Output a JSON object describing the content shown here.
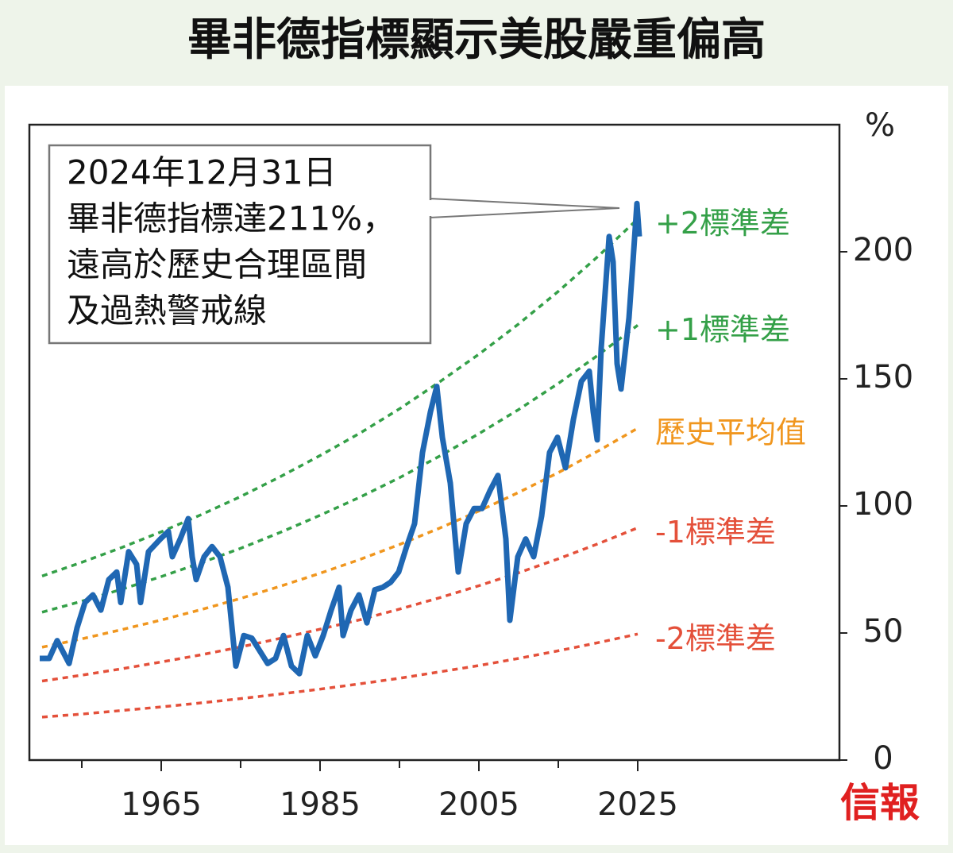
{
  "title": "畢非德指標顯示美股嚴重偏高",
  "source": "信報",
  "chart_data": {
    "type": "line",
    "y_unit": "%",
    "annotation": [
      "2024年12月31日",
      "畢非德指標達211%，",
      "遠高於歷史合理區間",
      "及過熱警戒線"
    ],
    "xlim": [
      1948.4,
      2050.4
    ],
    "xticks": [
      1965,
      1985,
      2005,
      2025
    ],
    "xminor_ticks": [
      1955,
      1975,
      1995,
      2015
    ],
    "ylim": [
      0,
      250
    ],
    "yticks": [
      0,
      50,
      100,
      150,
      200
    ],
    "series": [
      {
        "name": "+2標準差",
        "color": "#34a048",
        "dashed": true,
        "x": [
          1950,
          1955,
          1960,
          1965,
          1970,
          1975,
          1980,
          1985,
          1990,
          1995,
          2000,
          2005,
          2010,
          2015,
          2020,
          2025
        ],
        "values": [
          72.4,
          77.8,
          83.6,
          89.8,
          96.5,
          103.7,
          111.5,
          119.8,
          128.6,
          138.2,
          148.7,
          159.7,
          171.6,
          184.4,
          198.2,
          212.9
        ]
      },
      {
        "name": "+1標準差",
        "color": "#34a048",
        "dashed": true,
        "x": [
          1950,
          1955,
          1960,
          1965,
          1970,
          1975,
          1980,
          1985,
          1990,
          1995,
          2000,
          2005,
          2010,
          2015,
          2020,
          2025
        ],
        "values": [
          58.2,
          62.5,
          67.2,
          72.2,
          77.6,
          83.3,
          89.6,
          96.3,
          103.4,
          111.1,
          119.5,
          128.4,
          137.9,
          148.2,
          159.3,
          171.1
        ]
      },
      {
        "name": "歷史平均值",
        "color": "#f0961e",
        "dashed": true,
        "x": [
          1950,
          1955,
          1960,
          1965,
          1970,
          1975,
          1980,
          1985,
          1990,
          1995,
          2000,
          2005,
          2010,
          2015,
          2020,
          2025
        ],
        "values": [
          44.4,
          47.7,
          51.3,
          55.1,
          59.2,
          63.6,
          68.4,
          73.5,
          78.9,
          84.8,
          91.2,
          98.0,
          105.3,
          113.1,
          121.6,
          130.6
        ]
      },
      {
        "name": "-1標準差",
        "color": "#e4503a",
        "dashed": true,
        "x": [
          1950,
          1955,
          1960,
          1965,
          1970,
          1975,
          1980,
          1985,
          1990,
          1995,
          2000,
          2005,
          2010,
          2015,
          2020,
          2025
        ],
        "values": [
          31.1,
          33.4,
          35.9,
          38.6,
          41.4,
          44.5,
          47.9,
          51.5,
          55.2,
          59.4,
          63.8,
          68.6,
          73.7,
          79.2,
          85.1,
          91.4
        ]
      },
      {
        "name": "-2標準差",
        "color": "#e4503a",
        "dashed": true,
        "x": [
          1950,
          1955,
          1960,
          1965,
          1970,
          1975,
          1980,
          1985,
          1990,
          1995,
          2000,
          2005,
          2010,
          2015,
          2020,
          2025
        ],
        "values": [
          16.9,
          18.1,
          19.5,
          20.9,
          22.5,
          24.2,
          26.0,
          27.9,
          30.0,
          32.2,
          34.7,
          37.2,
          40.0,
          43.0,
          46.2,
          49.6
        ]
      },
      {
        "color": "#1f67b3",
        "dashed": false,
        "x": [
          1949.7,
          1950.9,
          1951.9,
          1953.4,
          1954.4,
          1955.4,
          1956.4,
          1957.4,
          1958.4,
          1959.4,
          1959.9,
          1960.9,
          1961.9,
          1962.4,
          1963.4,
          1964.9,
          1965.9,
          1966.4,
          1967.4,
          1968.4,
          1968.9,
          1969.4,
          1970.4,
          1971.4,
          1972.4,
          1973.4,
          1974.4,
          1975.4,
          1976.4,
          1977.4,
          1978.4,
          1979.4,
          1980.4,
          1981.4,
          1982.4,
          1983.4,
          1984.4,
          1985.4,
          1986.4,
          1987.4,
          1987.9,
          1988.9,
          1989.9,
          1990.9,
          1991.9,
          1992.9,
          1993.9,
          1994.9,
          1995.9,
          1996.9,
          1997.9,
          1998.9,
          1999.7,
          2000.4,
          2001.4,
          2002.4,
          2003.4,
          2004.4,
          2005.4,
          2006.4,
          2007.4,
          2008.4,
          2008.9,
          2009.9,
          2010.9,
          2011.9,
          2012.9,
          2013.9,
          2014.9,
          2015.9,
          2016.9,
          2017.9,
          2018.9,
          2019.4,
          2019.9,
          2020.4,
          2021.4,
          2021.9,
          2022.4,
          2022.9,
          2023.9,
          2024.4,
          2024.9,
          2025.2
        ],
        "values": [
          40,
          40,
          47,
          38,
          52,
          62,
          65,
          59,
          71,
          74,
          62,
          82,
          77,
          62,
          82,
          87,
          90,
          80,
          87,
          95,
          80,
          71,
          80,
          84,
          80,
          68,
          37,
          49,
          48,
          43,
          38,
          40,
          49,
          37,
          34,
          49,
          41,
          49,
          59,
          68,
          49,
          59,
          65,
          54,
          67,
          68,
          70,
          74,
          84,
          93,
          121,
          137,
          147,
          127,
          109,
          74,
          93,
          99,
          99,
          106,
          112,
          87,
          55,
          80,
          87,
          80,
          96,
          121,
          127,
          115,
          134,
          149,
          153,
          137,
          126,
          162,
          206,
          196,
          156,
          146,
          174,
          196,
          219,
          206
        ]
      }
    ]
  }
}
